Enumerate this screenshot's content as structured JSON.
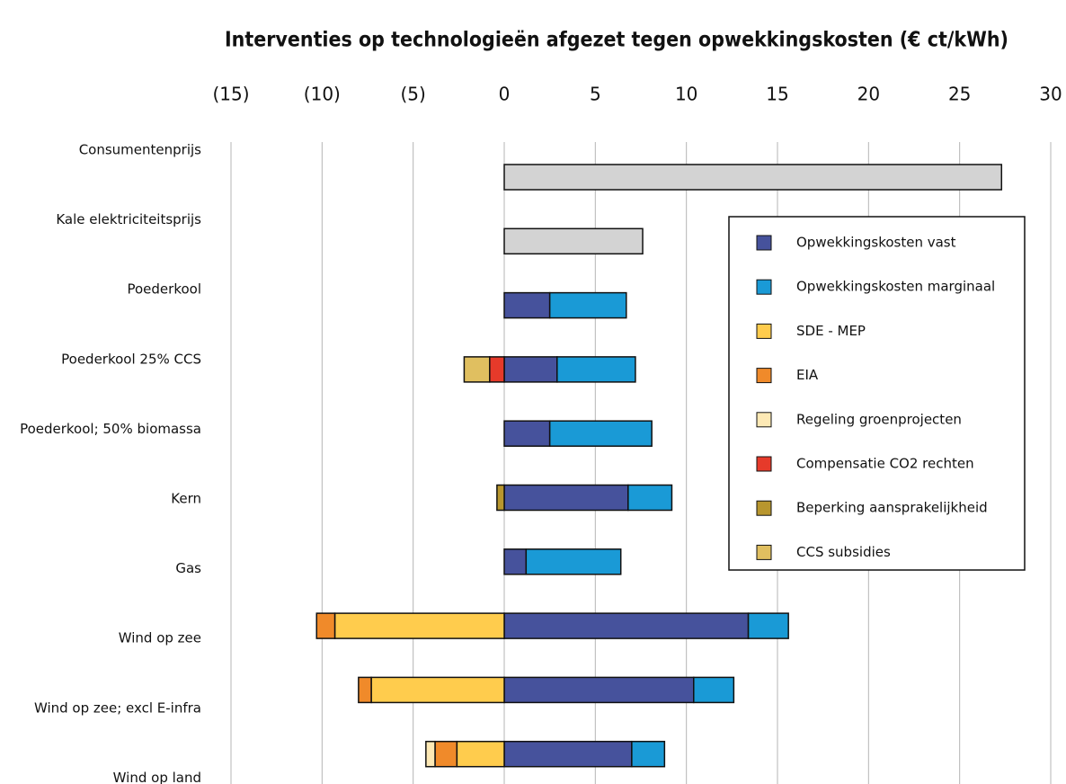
{
  "chart_data": {
    "type": "bar",
    "orientation": "horizontal",
    "stacked": true,
    "title": "Interventies op technologieën afgezet tegen opwekkingskosten (€ ct/kWh)",
    "categories": [
      "Consumentenprijs",
      "Kale elektriciteitsprijs",
      "Poederkool",
      "Poederkool 25% CCS",
      "Poederkool; 50% biomassa",
      "Kern",
      "Gas",
      "Wind op zee",
      "Wind op zee; excl E-infra",
      "Wind op land"
    ],
    "xlim": [
      -15,
      30
    ],
    "xticks": [
      {
        "value": -15,
        "label": "(15)"
      },
      {
        "value": -10,
        "label": "(10)"
      },
      {
        "value": -5,
        "label": "(5)"
      },
      0,
      5,
      10,
      15,
      20,
      25,
      30
    ],
    "grid": true,
    "legend": "upper right",
    "reference": {
      "color": "#d3d3d3",
      "values": [
        27.3,
        7.6,
        null,
        null,
        null,
        null,
        null,
        null,
        null,
        null
      ]
    },
    "series": [
      {
        "name": "Opwekkingskosten vast",
        "color": "#46529c",
        "values": [
          null,
          null,
          2.5,
          2.9,
          2.5,
          6.8,
          1.2,
          13.4,
          10.4,
          7.0
        ]
      },
      {
        "name": "Opwekkingskosten marginaal",
        "color": "#1a9ad6",
        "values": [
          null,
          null,
          4.2,
          4.3,
          5.6,
          2.4,
          5.2,
          2.2,
          2.2,
          1.8
        ]
      },
      {
        "name": "SDE - MEP",
        "color": "#ffcc4d",
        "values": [
          null,
          null,
          null,
          null,
          null,
          null,
          null,
          -9.3,
          -7.3,
          -2.6
        ]
      },
      {
        "name": "EIA",
        "color": "#f08a2a",
        "values": [
          null,
          null,
          null,
          null,
          null,
          null,
          null,
          -1.0,
          -0.7,
          -1.2
        ]
      },
      {
        "name": "Regeling groenprojecten",
        "color": "#fde9b5",
        "values": [
          null,
          null,
          null,
          null,
          null,
          null,
          null,
          null,
          null,
          -0.5
        ]
      },
      {
        "name": "Compensatie CO2 rechten",
        "color": "#e63a2a",
        "values": [
          null,
          null,
          null,
          -0.8,
          null,
          null,
          null,
          null,
          null,
          null
        ]
      },
      {
        "name": "Beperking aansprakelijkheid",
        "color": "#b8962e",
        "values": [
          null,
          null,
          null,
          null,
          null,
          -0.4,
          null,
          null,
          null,
          null
        ]
      },
      {
        "name": "CCS subsidies",
        "color": "#e0bf60",
        "values": [
          null,
          null,
          null,
          -1.4,
          null,
          null,
          null,
          null,
          null,
          null
        ]
      }
    ]
  }
}
